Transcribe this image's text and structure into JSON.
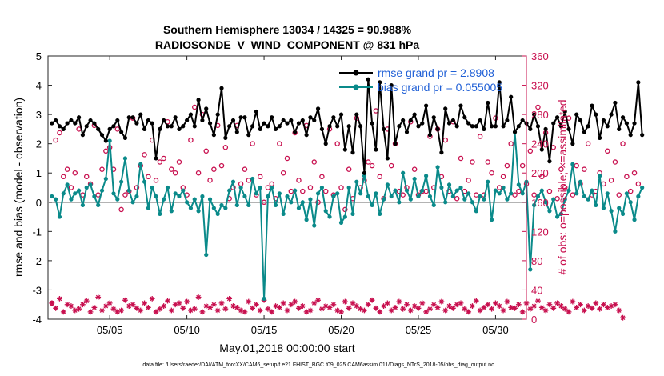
{
  "chart_data": {
    "type": "line",
    "title": "Southern Hemisphere 13034 / 14325 = 90.988%",
    "subtitle": "RADIOSONDE_V_WIND_COMPONENT @ 831 hPa",
    "xlabel": "May.01,2018 00:00:00 start",
    "ylabel": "rmse and bias (model - observation)",
    "y2label": "# of obs: o=possible; ×=assimilated",
    "footnote": "data file: /Users/raeder/DAI/ATM_forcXX/CAM6_setup/f.e21.FHIST_BGC.f09_025.CAM6assim.011/Diags_NTrS_2018-05/obs_diag_output.nc",
    "xlim": [
      1,
      32
    ],
    "ylim": [
      -4,
      5
    ],
    "y2lim": [
      0,
      360
    ],
    "x_ticks": [
      5,
      10,
      15,
      20,
      25,
      30
    ],
    "x_tick_labels": [
      "05/05",
      "05/10",
      "05/15",
      "05/20",
      "05/25",
      "05/30"
    ],
    "y_ticks": [
      -4,
      -3,
      -2,
      -1,
      0,
      1,
      2,
      3,
      4,
      5
    ],
    "y_tick_labels": [
      "-4",
      "-3",
      "-2",
      "-1",
      "0",
      "1",
      "2",
      "3",
      "4",
      "5"
    ],
    "y2_ticks": [
      0,
      40,
      80,
      120,
      160,
      200,
      240,
      280,
      320,
      360
    ],
    "y2_tick_labels": [
      "0",
      "40",
      "80",
      "120",
      "160",
      "200",
      "240",
      "280",
      "320",
      "360"
    ],
    "x_start": 1.25,
    "x_step": 0.25,
    "legend": {
      "position": "top-right",
      "entries": [
        "rmse grand pr = 2.8908",
        "bias grand pr = 0.055005"
      ]
    },
    "series": [
      {
        "name": "rmse",
        "color": "#000000",
        "values": [
          2.7,
          2.8,
          2.6,
          2.5,
          2.7,
          2.8,
          2.7,
          2.9,
          2.3,
          2.6,
          2.8,
          2.7,
          2.5,
          2.3,
          2.1,
          2.5,
          2.6,
          2.8,
          2.4,
          2.2,
          2.9,
          2.9,
          2.7,
          3.0,
          2.5,
          2.8,
          2.7,
          1.5,
          2.5,
          2.8,
          2.6,
          2.6,
          2.9,
          2.5,
          2.6,
          2.8,
          3.0,
          2.6,
          3.5,
          2.8,
          3.2,
          2.7,
          2.3,
          3.0,
          3.9,
          2.2,
          2.6,
          2.8,
          2.4,
          2.9,
          2.9,
          2.3,
          2.6,
          3.1,
          2.5,
          2.7,
          2.6,
          2.9,
          2.5,
          2.6,
          2.8,
          2.7,
          2.8,
          2.4,
          2.7,
          2.8,
          2.3,
          2.9,
          2.8,
          3.2,
          2.5,
          2.0,
          2.6,
          2.9,
          2.6,
          3.0,
          1.8,
          2.6,
          1.7,
          3.0,
          2.6,
          1.0,
          4.2,
          2.7,
          1.8,
          4.1,
          2.5,
          1.5,
          4.0,
          2.0,
          2.6,
          2.8,
          2.4,
          2.8,
          3.0,
          2.6,
          2.7,
          3.3,
          2.3,
          2.9,
          2.5,
          1.7,
          3.2,
          2.7,
          2.8,
          2.6,
          3.3,
          2.9,
          2.7,
          2.6,
          2.6,
          2.8,
          2.5,
          3.4,
          2.6,
          2.6,
          4.1,
          2.6,
          2.8,
          3.6,
          2.4,
          2.6,
          2.8,
          2.7,
          2.5,
          3.0,
          2.6,
          1.8,
          2.5,
          1.4,
          2.7,
          2.9,
          2.6,
          3.1,
          2.5,
          2.0,
          3.0,
          2.8,
          2.4,
          2.6,
          3.3,
          3.0,
          2.2,
          2.8,
          2.6,
          3.0,
          3.4,
          2.5,
          2.9,
          2.7,
          2.3,
          2.7,
          4.1,
          2.3
        ]
      },
      {
        "name": "bias",
        "color": "#0a8a8a",
        "values": [
          0.2,
          0.1,
          -0.5,
          0.3,
          0.6,
          0.1,
          0.3,
          0.4,
          -0.1,
          0.5,
          0.6,
          0.2,
          -0.1,
          0.4,
          0.8,
          2.1,
          0.3,
          0.1,
          0.7,
          1.5,
          0.4,
          0.0,
          0.2,
          1.3,
          0.7,
          -0.2,
          0.5,
          0.2,
          -0.4,
          0.1,
          0.5,
          -0.3,
          0.3,
          0.2,
          0.4,
          0.0,
          -0.2,
          0.1,
          -0.3,
          0.2,
          -1.8,
          0.1,
          -0.2,
          -0.4,
          -0.1,
          -0.2,
          0.4,
          0.7,
          -0.1,
          0.5,
          0.2,
          -0.1,
          0.8,
          0.3,
          0.5,
          -3.3,
          0.2,
          0.5,
          -0.1,
          0.3,
          -0.4,
          0.2,
          0.0,
          0.4,
          -0.2,
          0.0,
          -0.6,
          0.1,
          -0.8,
          0.3,
          0.5,
          -0.3,
          -0.5,
          0.2,
          0.3,
          -0.7,
          -0.5,
          0.5,
          -0.4,
          0.7,
          0.3,
          0.9,
          0.2,
          -0.1,
          0.3,
          -0.4,
          0.1,
          0.6,
          0.2,
          0.4,
          0.0,
          1.0,
          0.4,
          0.1,
          0.8,
          0.2,
          0.4,
          0.9,
          0.2,
          -0.1,
          1.2,
          0.5,
          0.0,
          0.6,
          0.2,
          0.4,
          0.5,
          0.1,
          0.3,
          0.0,
          -0.3,
          0.2,
          0.1,
          0.7,
          -0.6,
          0.4,
          0.3,
          0.5,
          0.1,
          0.3,
          2.4,
          0.6,
          0.3,
          0.7,
          -2.3,
          -0.1,
          0.2,
          0.4,
          0.0,
          -0.3,
          0.1,
          -0.5,
          -0.4,
          0.1,
          0.4,
          1.3,
          0.3,
          0.7,
          0.2,
          0.1,
          0.4,
          -0.1,
          0.9,
          -0.2,
          0.3,
          -0.3,
          -1.0,
          -0.2,
          -0.4,
          0.3,
          0.0,
          -0.6,
          0.2,
          0.5
        ]
      },
      {
        "name": "possible",
        "color": "#c8104f",
        "values": [
          22,
          245,
          255,
          195,
          205,
          180,
          200,
          260,
          170,
          195,
          185,
          265,
          170,
          205,
          230,
          235,
          205,
          260,
          150,
          170,
          175,
          275,
          180,
          210,
          225,
          195,
          245,
          190,
          215,
          220,
          270,
          205,
          200,
          215,
          180,
          170,
          245,
          290,
          200,
          280,
          230,
          190,
          205,
          265,
          210,
          235,
          165,
          180,
          265,
          185,
          205,
          190,
          240,
          170,
          195,
          160,
          180,
          185,
          165,
          240,
          200,
          220,
          175,
          255,
          190,
          175,
          265,
          180,
          215,
          160,
          195,
          175,
          260,
          170,
          240,
          180,
          150,
          205,
          165,
          275,
          180,
          190,
          215,
          210,
          285,
          195,
          165,
          260,
          210,
          240,
          175,
          170,
          180,
          270,
          205,
          170,
          175,
          175,
          250,
          180,
          260,
          195,
          245,
          175,
          270,
          165,
          220,
          175,
          190,
          215,
          170,
          250,
          170,
          215,
          200,
          275,
          180,
          195,
          210,
          240,
          170,
          175,
          210,
          185,
          230,
          170,
          290,
          195,
          255,
          175,
          235,
          165,
          205,
          180,
          275,
          170,
          210,
          185,
          205,
          240,
          170,
          175,
          200,
          185,
          230,
          190,
          215,
          170,
          240,
          195,
          175,
          200,
          185
        ]
      },
      {
        "name": "assimilated",
        "color": "#c8104f",
        "values": [
          22,
          15,
          28,
          10,
          20,
          18,
          12,
          14,
          20,
          25,
          10,
          16,
          30,
          12,
          18,
          22,
          14,
          10,
          12,
          26,
          18,
          20,
          15,
          12,
          22,
          16,
          28,
          10,
          14,
          18,
          25,
          12,
          20,
          22,
          15,
          24,
          12,
          14,
          30,
          10,
          18,
          16,
          20,
          12,
          22,
          14,
          28,
          18,
          16,
          12,
          10,
          24,
          15,
          20,
          12,
          26,
          14,
          10,
          18,
          16,
          22,
          12,
          20,
          24,
          15,
          18,
          10,
          12,
          22,
          26,
          14,
          18,
          16,
          20,
          12,
          10,
          24,
          15,
          22,
          18,
          14,
          12,
          20,
          26,
          15,
          10,
          18,
          22,
          12,
          16,
          24,
          14,
          20,
          12,
          18,
          15,
          22,
          10,
          14,
          20,
          16,
          24,
          12,
          18,
          15,
          20,
          22,
          14,
          10,
          18,
          25,
          12,
          16,
          20,
          14,
          22,
          18,
          12,
          24,
          16,
          15,
          20,
          10,
          22,
          14,
          18,
          25,
          16,
          12,
          20,
          15,
          22,
          18,
          14,
          10,
          24,
          16,
          20,
          12,
          18,
          15,
          22,
          14,
          20,
          16,
          18,
          20,
          12,
          2
        ]
      }
    ]
  }
}
